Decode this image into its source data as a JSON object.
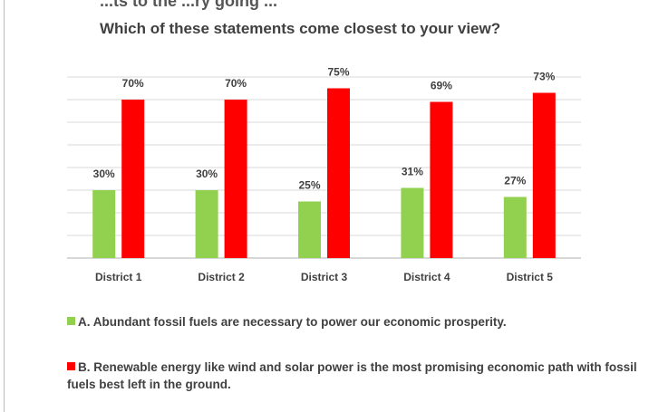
{
  "header": {
    "top_cutoff_text": "...ts to the ...ry going ...",
    "question": "Which of these statements come closest to your view?"
  },
  "colors": {
    "series_a": "#92d050",
    "series_b": "#ff0000",
    "grid": "#d9d9d9",
    "axis": "#bfbfbf",
    "text": "#404040"
  },
  "chart_data": {
    "type": "bar",
    "title": "Which of these statements come closest to your view?",
    "categories": [
      "District 1",
      "District 2",
      "District 3",
      "District 4",
      "District 5"
    ],
    "series": [
      {
        "name": "A. Abundant fossil fuels are necessary to power our economic prosperity.",
        "values": [
          30,
          30,
          25,
          31,
          27
        ],
        "labels": [
          "30%",
          "30%",
          "25%",
          "31%",
          "27%"
        ],
        "color": "#92d050"
      },
      {
        "name": "B. Renewable energy like wind and solar power is the most promising economic path with fossil fuels best left in the ground.",
        "values": [
          70,
          70,
          75,
          69,
          73
        ],
        "labels": [
          "70%",
          "70%",
          "75%",
          "69%",
          "73%"
        ],
        "color": "#ff0000"
      }
    ],
    "xlabel": "",
    "ylabel": "",
    "ylim": [
      0,
      80
    ],
    "grid": true,
    "legend_position": "bottom"
  },
  "legend": {
    "a_text": "A. Abundant fossil fuels are necessary to power our economic prosperity.",
    "b_text": "B. Renewable energy like wind and solar power is the most promising economic path with fossil fuels best left in the ground."
  }
}
